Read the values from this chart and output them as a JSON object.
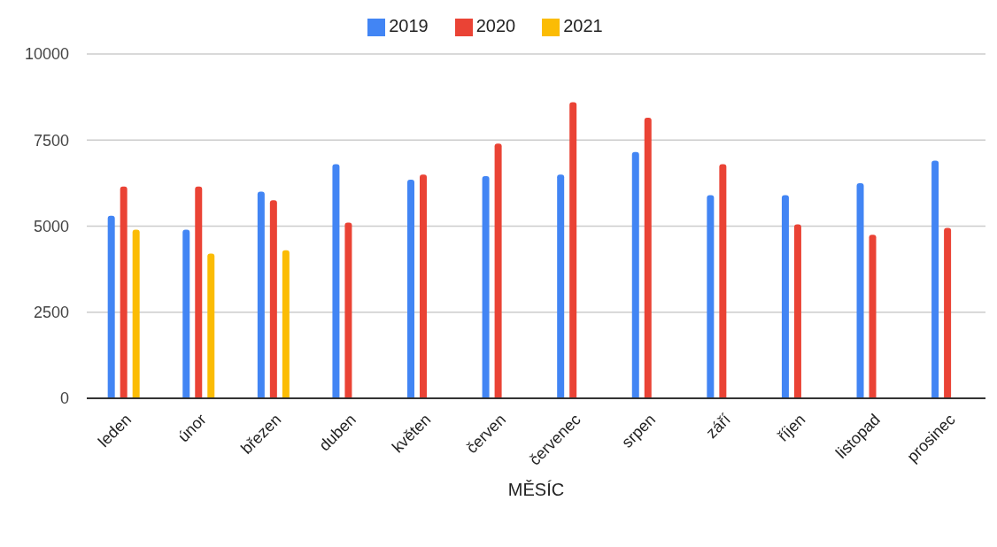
{
  "chart_data": {
    "type": "bar",
    "xlabel": "MĚSÍC",
    "categories": [
      "leden",
      "únor",
      "březen",
      "duben",
      "květen",
      "červen",
      "červenec",
      "srpen",
      "září",
      "říjen",
      "listopad",
      "prosinec"
    ],
    "series": [
      {
        "name": "2019",
        "color": "#4285f4",
        "values": [
          5300,
          4900,
          6000,
          6800,
          6350,
          6450,
          6500,
          7150,
          5900,
          5900,
          6250,
          6900
        ]
      },
      {
        "name": "2020",
        "color": "#ea4335",
        "values": [
          6150,
          6150,
          5750,
          5100,
          6500,
          7400,
          8600,
          8150,
          6800,
          5050,
          4750,
          4950
        ]
      },
      {
        "name": "2021",
        "color": "#fbbc04",
        "values": [
          4900,
          4200,
          4300,
          null,
          null,
          null,
          null,
          null,
          null,
          null,
          null,
          null
        ]
      }
    ],
    "ylim": [
      0,
      10000
    ],
    "yticks": [
      0,
      2500,
      5000,
      7500,
      10000
    ],
    "grid": "y",
    "legend": "top"
  }
}
